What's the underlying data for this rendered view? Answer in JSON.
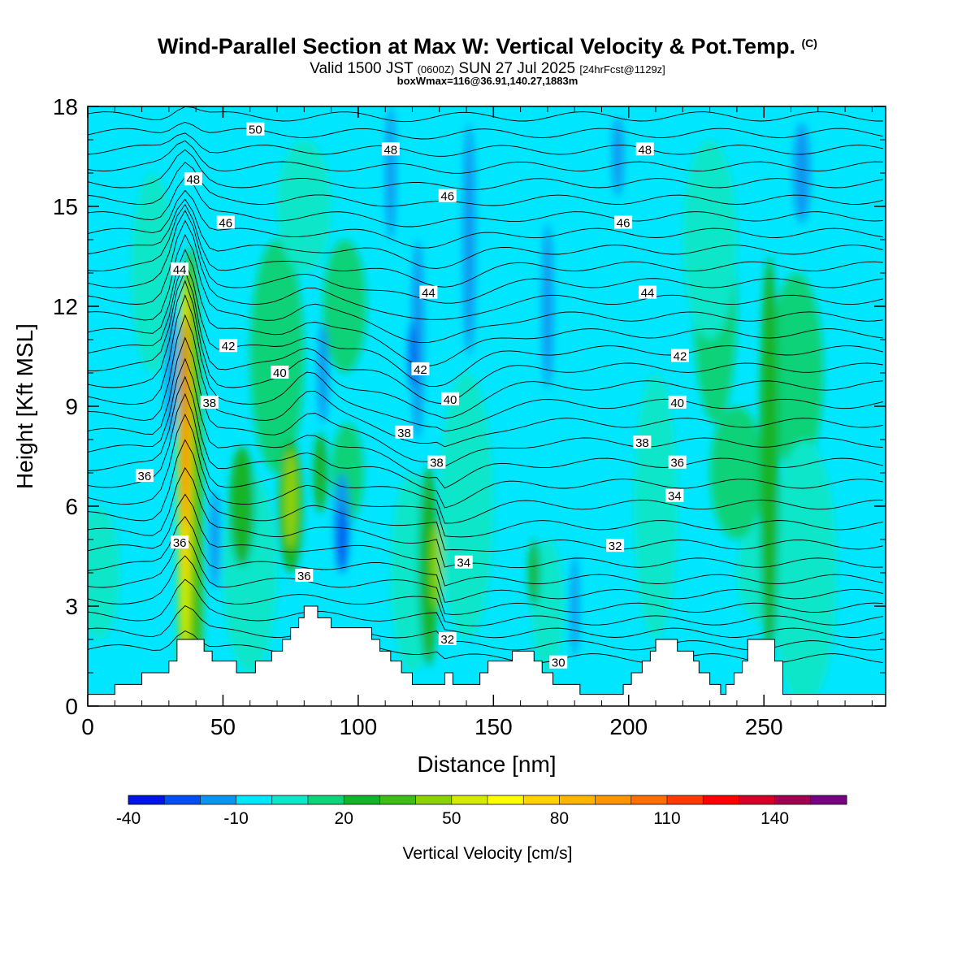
{
  "header": {
    "title": "Wind-Parallel Section at Max W: Vertical Velocity & Pot.Temp.",
    "title_mark": "(C)",
    "valid_prefix": "Valid 1500 JST",
    "valid_utc": "(0600Z)",
    "valid_date": "SUN 27 Jul 2025",
    "forecast": "[24hrFcst@1129z]",
    "box_info": "boxWmax=116@36.91,140.27,1883m"
  },
  "chart_data": {
    "type": "heatmap",
    "title": "Wind-Parallel Section at Max W: Vertical Velocity & Pot.Temp.",
    "xlabel": "Distance [nm]",
    "ylabel": "Height [Kft MSL]",
    "xlim": [
      0,
      295
    ],
    "ylim": [
      0,
      18
    ],
    "xticks": [
      0,
      50,
      100,
      150,
      200,
      250
    ],
    "yticks": [
      0,
      3,
      6,
      9,
      12,
      15,
      18
    ],
    "colorbar": {
      "label": "Vertical Velocity [cm/s]",
      "tick_labels": [
        -40,
        -10,
        20,
        50,
        80,
        110,
        140
      ],
      "levels": [
        -40,
        -30,
        -20,
        -10,
        0,
        10,
        20,
        30,
        40,
        50,
        60,
        70,
        80,
        90,
        100,
        110,
        120,
        130,
        140,
        150,
        160
      ],
      "colors": [
        "#0014e6",
        "#0050f0",
        "#0a96f0",
        "#00e6ff",
        "#10e6c8",
        "#10d278",
        "#12b428",
        "#3cbe14",
        "#8cd20a",
        "#d2eb00",
        "#ffff00",
        "#ffd200",
        "#ffb400",
        "#ff9600",
        "#ff6e00",
        "#ff3c00",
        "#ff0000",
        "#d20028",
        "#a00050",
        "#780082"
      ]
    },
    "contour_labels": [
      {
        "text": "50",
        "x": 62,
        "y": 17.3
      },
      {
        "text": "48",
        "x": 112,
        "y": 16.7
      },
      {
        "text": "48",
        "x": 206,
        "y": 16.7
      },
      {
        "text": "48",
        "x": 39,
        "y": 15.8
      },
      {
        "text": "46",
        "x": 133,
        "y": 15.3
      },
      {
        "text": "46",
        "x": 51,
        "y": 14.5
      },
      {
        "text": "46",
        "x": 198,
        "y": 14.5
      },
      {
        "text": "44",
        "x": 34,
        "y": 13.1
      },
      {
        "text": "44",
        "x": 126,
        "y": 12.4
      },
      {
        "text": "44",
        "x": 207,
        "y": 12.4
      },
      {
        "text": "42",
        "x": 52,
        "y": 10.8
      },
      {
        "text": "42",
        "x": 219,
        "y": 10.5
      },
      {
        "text": "42",
        "x": 123,
        "y": 10.1
      },
      {
        "text": "40",
        "x": 71,
        "y": 10.0
      },
      {
        "text": "40",
        "x": 134,
        "y": 9.2
      },
      {
        "text": "40",
        "x": 218,
        "y": 9.1
      },
      {
        "text": "38",
        "x": 45,
        "y": 9.1
      },
      {
        "text": "38",
        "x": 117,
        "y": 8.2
      },
      {
        "text": "38",
        "x": 205,
        "y": 7.9
      },
      {
        "text": "38",
        "x": 129,
        "y": 7.3
      },
      {
        "text": "36",
        "x": 218,
        "y": 7.3
      },
      {
        "text": "36",
        "x": 21,
        "y": 6.9
      },
      {
        "text": "34",
        "x": 217,
        "y": 6.3
      },
      {
        "text": "36",
        "x": 34,
        "y": 4.9
      },
      {
        "text": "32",
        "x": 195,
        "y": 4.8
      },
      {
        "text": "34",
        "x": 139,
        "y": 4.3
      },
      {
        "text": "36",
        "x": 80,
        "y": 3.9
      },
      {
        "text": "32",
        "x": 133,
        "y": 2.0
      },
      {
        "text": "30",
        "x": 174,
        "y": 1.3
      }
    ],
    "terrain_steps": [
      [
        0,
        0.35
      ],
      [
        10,
        0.65
      ],
      [
        20,
        1.0
      ],
      [
        30,
        1.35
      ],
      [
        33,
        2.0
      ],
      [
        43,
        1.65
      ],
      [
        46,
        1.35
      ],
      [
        55,
        1.0
      ],
      [
        62,
        1.35
      ],
      [
        68,
        1.65
      ],
      [
        72,
        2.0
      ],
      [
        75,
        2.35
      ],
      [
        78,
        2.65
      ],
      [
        80,
        3.0
      ],
      [
        85,
        2.65
      ],
      [
        90,
        2.35
      ],
      [
        100,
        2.35
      ],
      [
        105,
        2.0
      ],
      [
        108,
        1.65
      ],
      [
        112,
        1.35
      ],
      [
        116,
        1.0
      ],
      [
        120,
        0.65
      ],
      [
        128,
        0.65
      ],
      [
        132,
        1.0
      ],
      [
        135,
        0.65
      ],
      [
        140,
        0.65
      ],
      [
        145,
        1.0
      ],
      [
        148,
        1.35
      ],
      [
        157,
        1.65
      ],
      [
        165,
        1.35
      ],
      [
        168,
        1.0
      ],
      [
        172,
        0.65
      ],
      [
        182,
        0.35
      ],
      [
        195,
        0.35
      ],
      [
        198,
        0.65
      ],
      [
        201,
        1.0
      ],
      [
        205,
        1.35
      ],
      [
        208,
        1.65
      ],
      [
        210,
        2.0
      ],
      [
        218,
        1.65
      ],
      [
        224,
        1.35
      ],
      [
        226,
        1.0
      ],
      [
        230,
        0.65
      ],
      [
        234,
        0.35
      ],
      [
        236,
        0.65
      ],
      [
        239,
        1.0
      ],
      [
        242,
        1.35
      ],
      [
        244,
        2.0
      ],
      [
        254,
        1.35
      ],
      [
        257,
        0.35
      ],
      [
        295,
        0.35
      ]
    ]
  }
}
